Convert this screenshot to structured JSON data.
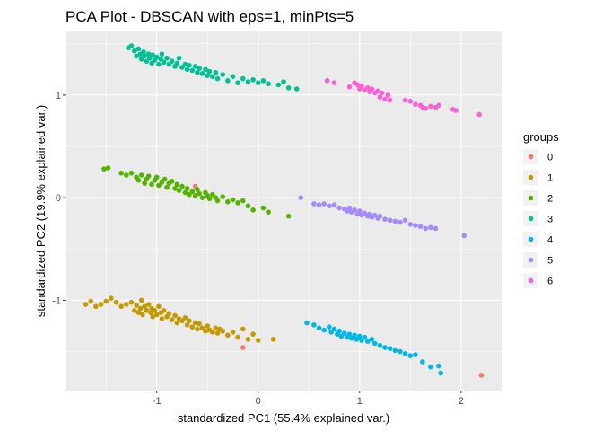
{
  "chart_data": {
    "type": "scatter",
    "title": "PCA Plot - DBSCAN with eps=1, minPts=5",
    "xlabel": "standardized PC1 (55.4% explained var.)",
    "ylabel": "standardized PC2 (19.9% explained var.)",
    "xlim": [
      -1.9,
      2.4
    ],
    "ylim": [
      -1.88,
      1.62
    ],
    "x_ticks": [
      -1,
      0,
      1,
      2
    ],
    "x_tick_labels": [
      "-1",
      "0",
      "1",
      "2"
    ],
    "y_ticks": [
      -1,
      0,
      1
    ],
    "y_tick_labels": [
      "-1",
      "0",
      "1"
    ],
    "grid": true,
    "legend": {
      "title": "groups",
      "position": "right"
    },
    "background": "#ebebeb",
    "series": [
      {
        "name": "0",
        "color": "#F8766D",
        "points": [
          [
            -0.62,
            0.11
          ],
          [
            -0.15,
            -1.46
          ],
          [
            2.2,
            -1.73
          ]
        ]
      },
      {
        "name": "1",
        "color": "#C49A00",
        "points": [
          [
            -1.7,
            -1.04
          ],
          [
            -1.65,
            -1.01
          ],
          [
            -1.6,
            -1.06
          ],
          [
            -1.55,
            -1.04
          ],
          [
            -1.5,
            -1.01
          ],
          [
            -1.45,
            -0.98
          ],
          [
            -1.4,
            -1.02
          ],
          [
            -1.35,
            -1.06
          ],
          [
            -1.3,
            -1.04
          ],
          [
            -1.25,
            -1.02
          ],
          [
            -1.22,
            -1.1
          ],
          [
            -1.2,
            -1.05
          ],
          [
            -1.18,
            -1.12
          ],
          [
            -1.16,
            -1.08
          ],
          [
            -1.15,
            -1.0
          ],
          [
            -1.14,
            -1.14
          ],
          [
            -1.12,
            -1.06
          ],
          [
            -1.1,
            -1.1
          ],
          [
            -1.08,
            -1.04
          ],
          [
            -1.06,
            -1.12
          ],
          [
            -1.05,
            -1.08
          ],
          [
            -1.04,
            -1.16
          ],
          [
            -1.02,
            -1.1
          ],
          [
            -1.0,
            -1.14
          ],
          [
            -0.98,
            -1.06
          ],
          [
            -0.96,
            -1.12
          ],
          [
            -0.95,
            -1.18
          ],
          [
            -0.93,
            -1.1
          ],
          [
            -0.9,
            -1.16
          ],
          [
            -0.88,
            -1.13
          ],
          [
            -0.85,
            -1.19
          ],
          [
            -0.82,
            -1.15
          ],
          [
            -0.8,
            -1.22
          ],
          [
            -0.78,
            -1.18
          ],
          [
            -0.75,
            -1.2
          ],
          [
            -0.72,
            -1.17
          ],
          [
            -0.7,
            -1.24
          ],
          [
            -0.68,
            -1.2
          ],
          [
            -0.65,
            -1.26
          ],
          [
            -0.62,
            -1.22
          ],
          [
            -0.6,
            -1.28
          ],
          [
            -0.58,
            -1.23
          ],
          [
            -0.55,
            -1.27
          ],
          [
            -0.52,
            -1.3
          ],
          [
            -0.5,
            -1.25
          ],
          [
            -0.48,
            -1.29
          ],
          [
            -0.45,
            -1.31
          ],
          [
            -0.42,
            -1.27
          ],
          [
            -0.4,
            -1.32
          ],
          [
            -0.38,
            -1.28
          ],
          [
            -0.35,
            -1.3
          ],
          [
            -0.3,
            -1.34
          ],
          [
            -0.25,
            -1.31
          ],
          [
            -0.2,
            -1.36
          ],
          [
            -0.15,
            -1.28
          ],
          [
            -0.1,
            -1.38
          ],
          [
            -0.05,
            -1.33
          ],
          [
            0.0,
            -1.39
          ],
          [
            0.15,
            -1.38
          ]
        ]
      },
      {
        "name": "2",
        "color": "#53B400",
        "points": [
          [
            -1.52,
            0.28
          ],
          [
            -1.48,
            0.29
          ],
          [
            -1.35,
            0.24
          ],
          [
            -1.3,
            0.22
          ],
          [
            -1.25,
            0.24
          ],
          [
            -1.2,
            0.2
          ],
          [
            -1.18,
            0.17
          ],
          [
            -1.15,
            0.22
          ],
          [
            -1.12,
            0.14
          ],
          [
            -1.1,
            0.18
          ],
          [
            -1.08,
            0.21
          ],
          [
            -1.05,
            0.13
          ],
          [
            -1.02,
            0.17
          ],
          [
            -1.0,
            0.2
          ],
          [
            -0.98,
            0.12
          ],
          [
            -0.95,
            0.15
          ],
          [
            -0.92,
            0.18
          ],
          [
            -0.9,
            0.1
          ],
          [
            -0.88,
            0.14
          ],
          [
            -0.85,
            0.16
          ],
          [
            -0.82,
            0.09
          ],
          [
            -0.8,
            0.13
          ],
          [
            -0.78,
            0.07
          ],
          [
            -0.75,
            0.11
          ],
          [
            -0.72,
            0.05
          ],
          [
            -0.7,
            0.09
          ],
          [
            -0.68,
            0.03
          ],
          [
            -0.65,
            0.06
          ],
          [
            -0.62,
            0.02
          ],
          [
            -0.6,
            0.08
          ],
          [
            -0.58,
            0.04
          ],
          [
            -0.55,
            0.0
          ],
          [
            -0.52,
            0.05
          ],
          [
            -0.5,
            0.02
          ],
          [
            -0.48,
            -0.01
          ],
          [
            -0.45,
            0.03
          ],
          [
            -0.42,
            0.0
          ],
          [
            -0.4,
            -0.03
          ],
          [
            -0.35,
            0.01
          ],
          [
            -0.3,
            -0.04
          ],
          [
            -0.25,
            -0.02
          ],
          [
            -0.2,
            -0.05
          ],
          [
            -0.15,
            -0.03
          ],
          [
            -0.1,
            -0.08
          ],
          [
            -0.05,
            -0.12
          ],
          [
            0.05,
            -0.1
          ],
          [
            0.1,
            -0.14
          ],
          [
            0.3,
            -0.18
          ]
        ]
      },
      {
        "name": "3",
        "color": "#00C094",
        "points": [
          [
            -1.28,
            1.46
          ],
          [
            -1.25,
            1.48
          ],
          [
            -1.22,
            1.43
          ],
          [
            -1.2,
            1.38
          ],
          [
            -1.18,
            1.45
          ],
          [
            -1.16,
            1.4
          ],
          [
            -1.15,
            1.35
          ],
          [
            -1.13,
            1.42
          ],
          [
            -1.12,
            1.38
          ],
          [
            -1.1,
            1.33
          ],
          [
            -1.08,
            1.4
          ],
          [
            -1.07,
            1.36
          ],
          [
            -1.05,
            1.31
          ],
          [
            -1.04,
            1.39
          ],
          [
            -1.02,
            1.34
          ],
          [
            -1.0,
            1.37
          ],
          [
            -0.98,
            1.3
          ],
          [
            -0.96,
            1.35
          ],
          [
            -0.95,
            1.4
          ],
          [
            -0.93,
            1.32
          ],
          [
            -0.9,
            1.36
          ],
          [
            -0.88,
            1.3
          ],
          [
            -0.85,
            1.33
          ],
          [
            -0.82,
            1.28
          ],
          [
            -0.8,
            1.31
          ],
          [
            -0.78,
            1.36
          ],
          [
            -0.75,
            1.27
          ],
          [
            -0.72,
            1.3
          ],
          [
            -0.7,
            1.25
          ],
          [
            -0.68,
            1.29
          ],
          [
            -0.65,
            1.24
          ],
          [
            -0.62,
            1.28
          ],
          [
            -0.6,
            1.22
          ],
          [
            -0.58,
            1.26
          ],
          [
            -0.55,
            1.21
          ],
          [
            -0.52,
            1.25
          ],
          [
            -0.5,
            1.19
          ],
          [
            -0.48,
            1.23
          ],
          [
            -0.45,
            1.18
          ],
          [
            -0.42,
            1.22
          ],
          [
            -0.4,
            1.16
          ],
          [
            -0.35,
            1.2
          ],
          [
            -0.3,
            1.14
          ],
          [
            -0.25,
            1.18
          ],
          [
            -0.2,
            1.12
          ],
          [
            -0.15,
            1.16
          ],
          [
            -0.1,
            1.13
          ],
          [
            -0.05,
            1.15
          ],
          [
            0.0,
            1.12
          ],
          [
            0.05,
            1.14
          ],
          [
            0.1,
            1.11
          ],
          [
            0.2,
            1.1
          ],
          [
            0.25,
            1.13
          ],
          [
            0.3,
            1.07
          ],
          [
            0.38,
            1.06
          ]
        ]
      },
      {
        "name": "4",
        "color": "#00B6EB",
        "points": [
          [
            0.48,
            -1.22
          ],
          [
            0.55,
            -1.24
          ],
          [
            0.6,
            -1.27
          ],
          [
            0.65,
            -1.29
          ],
          [
            0.7,
            -1.26
          ],
          [
            0.72,
            -1.31
          ],
          [
            0.75,
            -1.28
          ],
          [
            0.78,
            -1.33
          ],
          [
            0.8,
            -1.3
          ],
          [
            0.82,
            -1.35
          ],
          [
            0.85,
            -1.32
          ],
          [
            0.88,
            -1.36
          ],
          [
            0.9,
            -1.33
          ],
          [
            0.92,
            -1.37
          ],
          [
            0.95,
            -1.34
          ],
          [
            0.97,
            -1.38
          ],
          [
            1.0,
            -1.35
          ],
          [
            1.02,
            -1.39
          ],
          [
            1.05,
            -1.36
          ],
          [
            1.08,
            -1.4
          ],
          [
            1.12,
            -1.38
          ],
          [
            1.15,
            -1.42
          ],
          [
            1.2,
            -1.44
          ],
          [
            1.25,
            -1.46
          ],
          [
            1.3,
            -1.47
          ],
          [
            1.35,
            -1.49
          ],
          [
            1.4,
            -1.5
          ],
          [
            1.45,
            -1.52
          ],
          [
            1.5,
            -1.54
          ],
          [
            1.55,
            -1.53
          ],
          [
            1.62,
            -1.6
          ],
          [
            1.7,
            -1.65
          ],
          [
            1.78,
            -1.64
          ],
          [
            1.8,
            -1.71
          ]
        ]
      },
      {
        "name": "5",
        "color": "#A58AFF",
        "points": [
          [
            0.42,
            0.0
          ],
          [
            0.55,
            -0.06
          ],
          [
            0.6,
            -0.07
          ],
          [
            0.65,
            -0.06
          ],
          [
            0.7,
            -0.08
          ],
          [
            0.75,
            -0.07
          ],
          [
            0.8,
            -0.1
          ],
          [
            0.85,
            -0.11
          ],
          [
            0.88,
            -0.13
          ],
          [
            0.9,
            -0.1
          ],
          [
            0.92,
            -0.14
          ],
          [
            0.95,
            -0.12
          ],
          [
            0.98,
            -0.16
          ],
          [
            1.0,
            -0.13
          ],
          [
            1.02,
            -0.17
          ],
          [
            1.05,
            -0.15
          ],
          [
            1.08,
            -0.18
          ],
          [
            1.1,
            -0.16
          ],
          [
            1.12,
            -0.19
          ],
          [
            1.15,
            -0.17
          ],
          [
            1.18,
            -0.2
          ],
          [
            1.2,
            -0.18
          ],
          [
            1.25,
            -0.21
          ],
          [
            1.3,
            -0.22
          ],
          [
            1.35,
            -0.23
          ],
          [
            1.4,
            -0.24
          ],
          [
            1.45,
            -0.22
          ],
          [
            1.5,
            -0.26
          ],
          [
            1.55,
            -0.27
          ],
          [
            1.6,
            -0.28
          ],
          [
            1.65,
            -0.3
          ],
          [
            1.7,
            -0.29
          ],
          [
            1.75,
            -0.3
          ],
          [
            2.03,
            -0.37
          ]
        ]
      },
      {
        "name": "6",
        "color": "#FB61D7",
        "points": [
          [
            0.68,
            1.14
          ],
          [
            0.75,
            1.12
          ],
          [
            0.9,
            1.08
          ],
          [
            0.95,
            1.12
          ],
          [
            0.98,
            1.1
          ],
          [
            1.0,
            1.06
          ],
          [
            1.02,
            1.09
          ],
          [
            1.05,
            1.05
          ],
          [
            1.08,
            1.07
          ],
          [
            1.1,
            1.03
          ],
          [
            1.12,
            1.06
          ],
          [
            1.15,
            1.02
          ],
          [
            1.18,
            1.04
          ],
          [
            1.2,
            0.98
          ],
          [
            1.22,
            1.02
          ],
          [
            1.25,
            0.96
          ],
          [
            1.28,
            1.0
          ],
          [
            1.3,
            0.95
          ],
          [
            1.45,
            0.95
          ],
          [
            1.5,
            0.94
          ],
          [
            1.55,
            0.91
          ],
          [
            1.6,
            0.9
          ],
          [
            1.62,
            0.88
          ],
          [
            1.65,
            0.87
          ],
          [
            1.7,
            0.89
          ],
          [
            1.75,
            0.88
          ],
          [
            1.78,
            0.9
          ],
          [
            1.92,
            0.86
          ],
          [
            1.95,
            0.85
          ],
          [
            2.18,
            0.81
          ]
        ]
      }
    ]
  }
}
